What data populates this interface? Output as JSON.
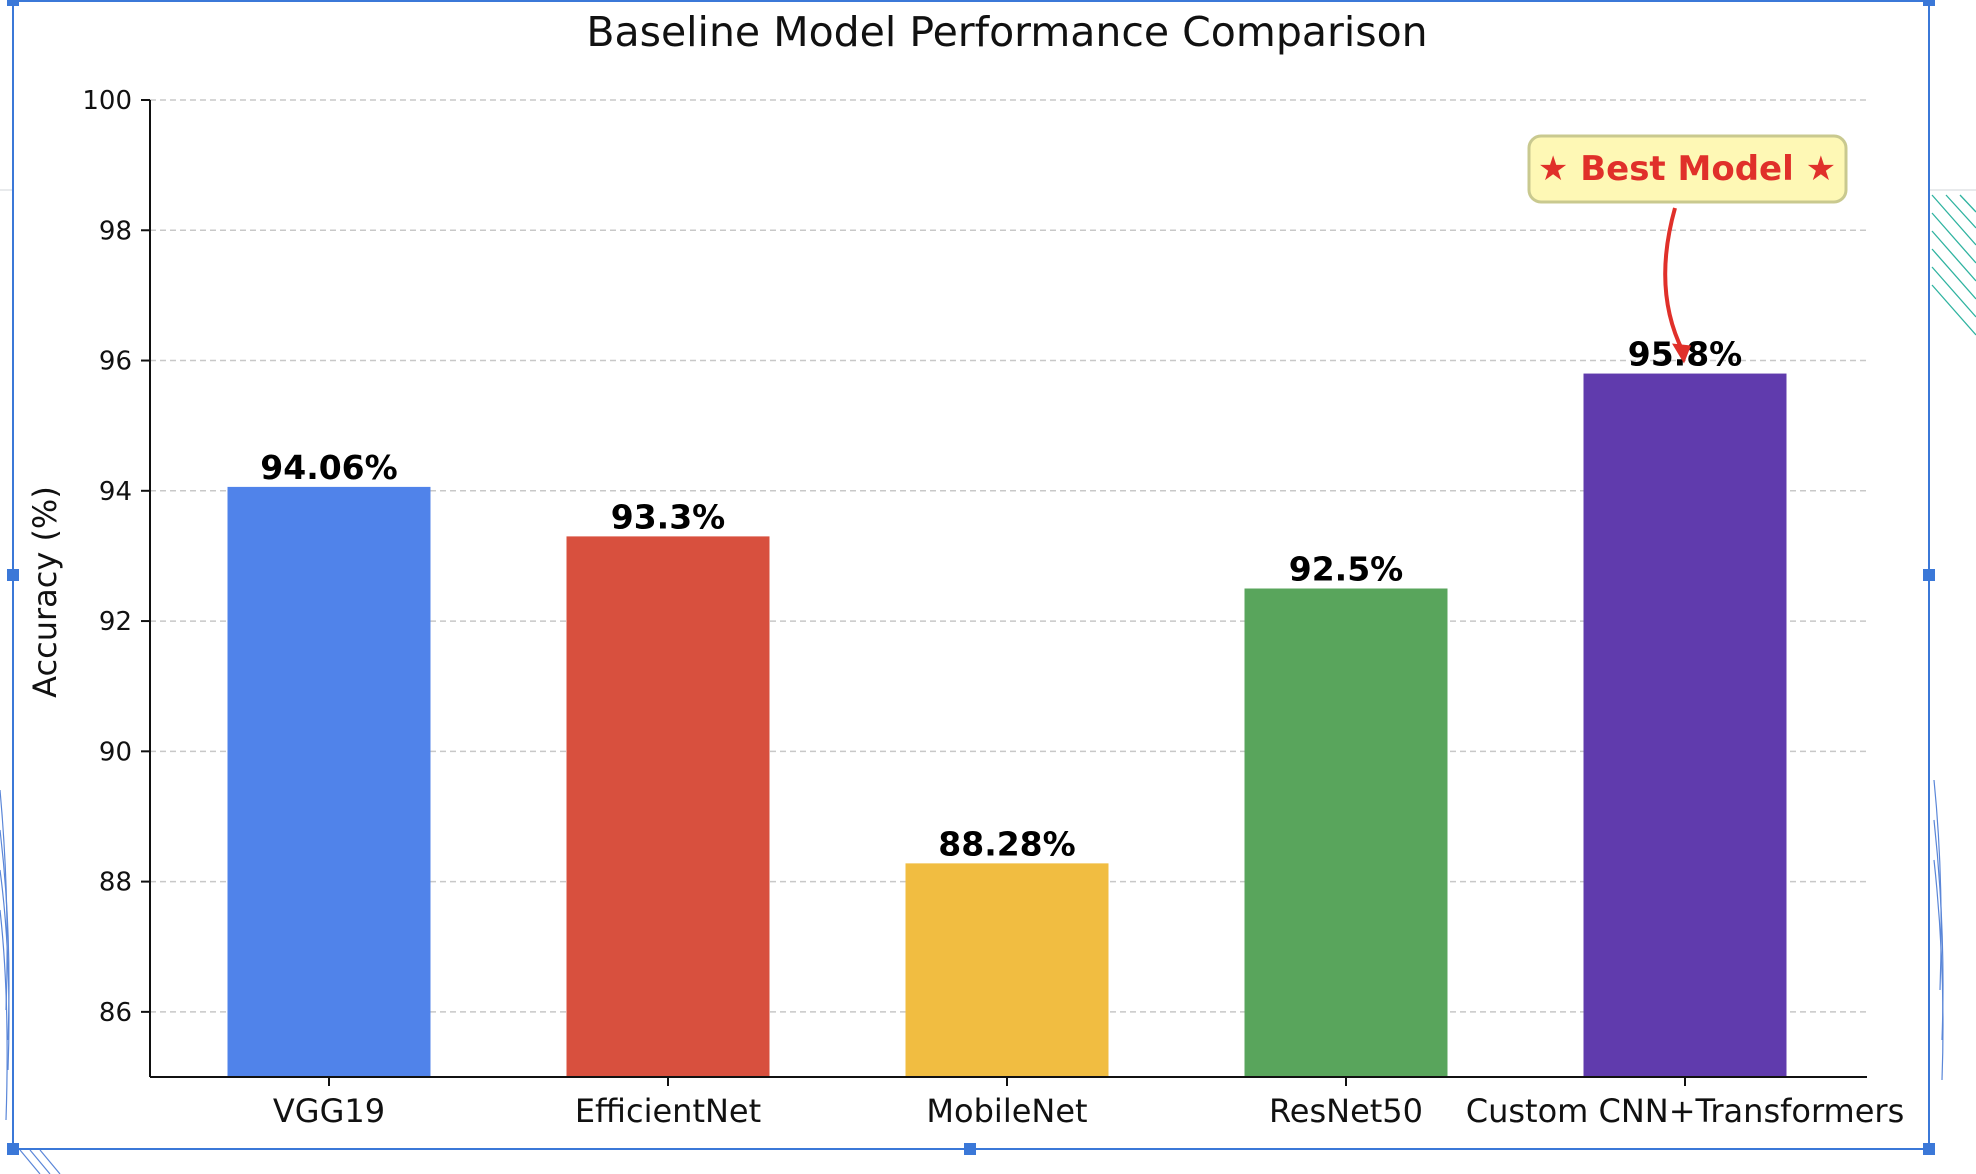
{
  "chart_data": {
    "type": "bar",
    "title": "Baseline Model Performance Comparison",
    "xlabel": "",
    "ylabel": "Accuracy (%)",
    "ylim": [
      85,
      100
    ],
    "yticks": [
      86,
      88,
      90,
      92,
      94,
      96,
      98,
      100
    ],
    "grid": "y-dashed",
    "categories": [
      "VGG19",
      "EfficientNet",
      "MobileNet",
      "ResNet50",
      "Custom CNN+Transformers"
    ],
    "values": [
      94.06,
      93.3,
      88.28,
      92.5,
      95.8
    ],
    "value_labels": [
      "94.06%",
      "93.3%",
      "88.28%",
      "92.5%",
      "95.8%"
    ],
    "colors": [
      "#5083EA",
      "#D8503E",
      "#F1BD41",
      "#59A55C",
      "#603BAD"
    ],
    "annotation": {
      "text": "★ Best Model ★",
      "target_index": 4,
      "text_color": "#E0302A",
      "box_fill": "#FEF8B5",
      "box_border": "#C9C98F",
      "arrow_color": "#E0302A"
    }
  }
}
